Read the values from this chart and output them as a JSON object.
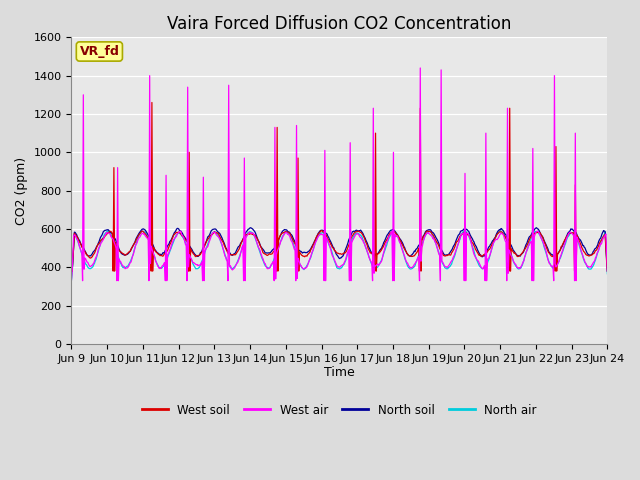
{
  "title": "Vaira Forced Diffusion CO2 Concentration",
  "xlabel": "Time",
  "ylabel": "CO2 (ppm)",
  "ylim": [
    0,
    1600
  ],
  "yticks": [
    0,
    200,
    400,
    600,
    800,
    1000,
    1200,
    1400,
    1600
  ],
  "xtick_labels": [
    "Jun 9",
    "Jun 10",
    "Jun 11",
    "Jun 12",
    "Jun 13",
    "Jun 14",
    "Jun 15",
    "Jun 16",
    "Jun 17",
    "Jun 18",
    "Jun 19",
    "Jun 20",
    "Jun 21",
    "Jun 22",
    "Jun 23",
    "Jun 24"
  ],
  "legend_entries": [
    "West soil",
    "West air",
    "North soil",
    "North air"
  ],
  "legend_colors": [
    "#dd0000",
    "#ff00ff",
    "#000099",
    "#00ccdd"
  ],
  "bg_color": "#dcdcdc",
  "plot_bg_color": "#e8e8e8",
  "label_box_color": "#ffff99",
  "label_box_text": "VR_fd",
  "label_box_text_color": "#880000",
  "title_fontsize": 12,
  "axis_label_fontsize": 9,
  "tick_fontsize": 8,
  "n_points": 720
}
